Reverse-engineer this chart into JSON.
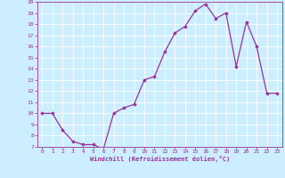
{
  "x": [
    0,
    1,
    2,
    3,
    4,
    5,
    6,
    7,
    8,
    9,
    10,
    11,
    12,
    13,
    14,
    15,
    16,
    17,
    18,
    19,
    20,
    21,
    22,
    23
  ],
  "y": [
    10.0,
    10.0,
    8.5,
    7.5,
    7.2,
    7.2,
    6.8,
    10.0,
    10.5,
    10.8,
    13.0,
    13.3,
    15.5,
    17.2,
    17.8,
    19.2,
    19.8,
    18.5,
    19.0,
    14.2,
    18.2,
    16.0,
    11.8,
    11.8
  ],
  "xlabel": "Windchill (Refroidissement éolien,°C)",
  "ylim": [
    7,
    20
  ],
  "xlim": [
    -0.5,
    23.5
  ],
  "yticks": [
    7,
    8,
    9,
    10,
    11,
    12,
    13,
    14,
    15,
    16,
    17,
    18,
    19,
    20
  ],
  "xticks": [
    0,
    1,
    2,
    3,
    4,
    5,
    6,
    7,
    8,
    9,
    10,
    11,
    12,
    13,
    14,
    15,
    16,
    17,
    18,
    19,
    20,
    21,
    22,
    23
  ],
  "line_color": "#993399",
  "marker": "D",
  "marker_size": 1.8,
  "bg_color": "#cceeff",
  "grid_color": "#aaddcc",
  "tick_color": "#993399",
  "label_color": "#993399",
  "font_name": "monospace"
}
